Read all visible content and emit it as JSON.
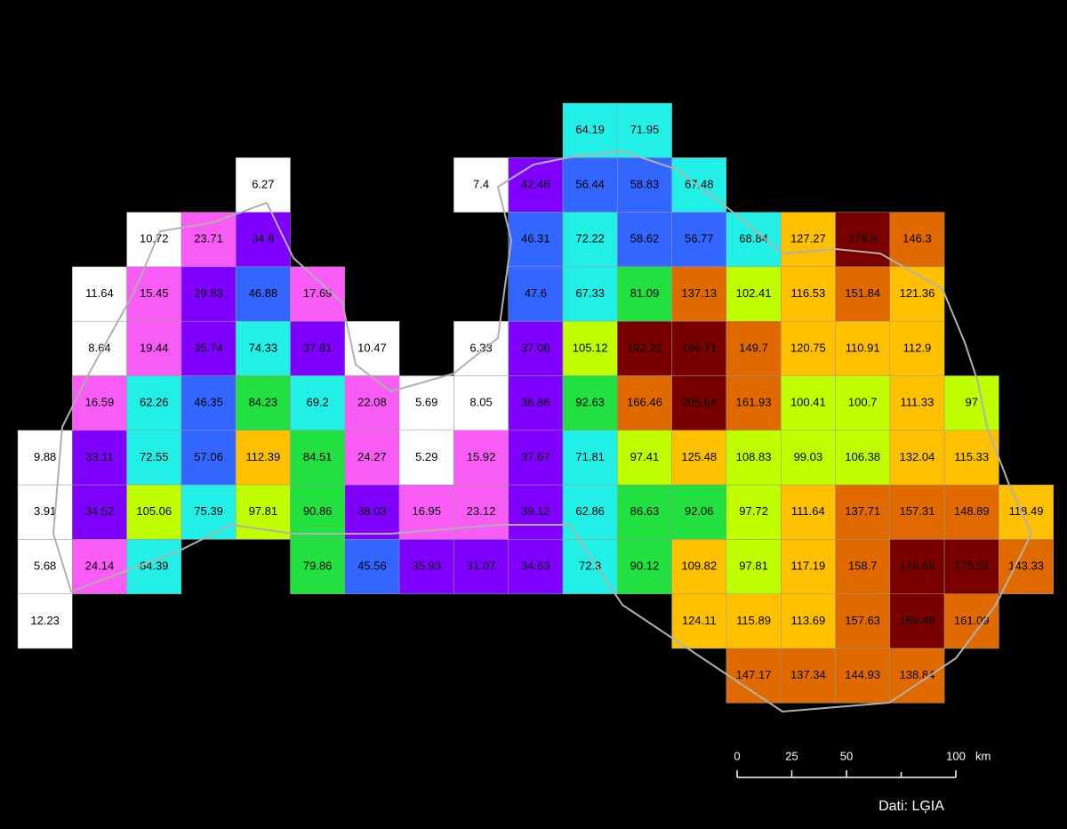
{
  "map": {
    "rows": [
      [
        null,
        null,
        null,
        null,
        null,
        null,
        null,
        null,
        null,
        null,
        {
          "value": 64.19,
          "color": "#22f0e6"
        },
        {
          "value": 71.95,
          "color": "#22f0e6"
        },
        null,
        null,
        null,
        null,
        null,
        null,
        null
      ],
      [
        null,
        null,
        null,
        null,
        {
          "value": 6.27,
          "color": "#ffffff"
        },
        null,
        null,
        null,
        {
          "value": 7.4,
          "color": "#ffffff"
        },
        {
          "value": 42.48,
          "color": "#8000ff"
        },
        {
          "value": 56.44,
          "color": "#3366ff"
        },
        {
          "value": 58.83,
          "color": "#3366ff"
        },
        {
          "value": 67.48,
          "color": "#22f0e6"
        },
        null,
        null,
        null,
        null,
        null,
        null
      ],
      [
        null,
        null,
        {
          "value": 10.72,
          "color": "#ffffff"
        },
        {
          "value": 23.71,
          "color": "#f95cf5"
        },
        {
          "value": 34.8,
          "color": "#8000ff"
        },
        null,
        null,
        null,
        null,
        {
          "value": 46.31,
          "color": "#3366ff"
        },
        {
          "value": 72.22,
          "color": "#22f0e6"
        },
        {
          "value": 58.62,
          "color": "#3366ff"
        },
        {
          "value": 56.77,
          "color": "#3366ff"
        },
        {
          "value": 68.84,
          "color": "#22f0e6"
        },
        {
          "value": 127.27,
          "color": "#ffc000"
        },
        {
          "value": 179.8,
          "color": "#7a0000"
        },
        {
          "value": 146.3,
          "color": "#e06a00"
        },
        null,
        null
      ],
      [
        null,
        {
          "value": 11.64,
          "color": "#ffffff"
        },
        {
          "value": 15.45,
          "color": "#f95cf5"
        },
        {
          "value": 29.83,
          "color": "#8000ff"
        },
        {
          "value": 46.88,
          "color": "#3366ff"
        },
        {
          "value": 17.69,
          "color": "#f95cf5"
        },
        null,
        null,
        null,
        {
          "value": 47.6,
          "color": "#3366ff"
        },
        {
          "value": 67.33,
          "color": "#22f0e6"
        },
        {
          "value": 81.09,
          "color": "#22e040"
        },
        {
          "value": 137.13,
          "color": "#e06a00"
        },
        {
          "value": 102.41,
          "color": "#bfff00"
        },
        {
          "value": 116.53,
          "color": "#ffc000"
        },
        {
          "value": 151.84,
          "color": "#e06a00"
        },
        {
          "value": 121.36,
          "color": "#ffc000"
        },
        null,
        null
      ],
      [
        null,
        {
          "value": 8.64,
          "color": "#ffffff"
        },
        {
          "value": 19.44,
          "color": "#f95cf5"
        },
        {
          "value": 35.74,
          "color": "#8000ff"
        },
        {
          "value": 74.33,
          "color": "#22f0e6"
        },
        {
          "value": 37.81,
          "color": "#8000ff"
        },
        {
          "value": 10.47,
          "color": "#ffffff"
        },
        null,
        {
          "value": 6.33,
          "color": "#ffffff"
        },
        {
          "value": 37.06,
          "color": "#8000ff"
        },
        {
          "value": 105.12,
          "color": "#bfff00"
        },
        {
          "value": 192.22,
          "color": "#7a0000"
        },
        {
          "value": 196.71,
          "color": "#7a0000"
        },
        {
          "value": 149.7,
          "color": "#e06a00"
        },
        {
          "value": 120.75,
          "color": "#ffc000"
        },
        {
          "value": 110.91,
          "color": "#ffc000"
        },
        {
          "value": 112.9,
          "color": "#ffc000"
        },
        null,
        null
      ],
      [
        null,
        {
          "value": 16.59,
          "color": "#f95cf5"
        },
        {
          "value": 62.26,
          "color": "#22f0e6"
        },
        {
          "value": 46.35,
          "color": "#3366ff"
        },
        {
          "value": 84.23,
          "color": "#22e040"
        },
        {
          "value": 69.2,
          "color": "#22f0e6"
        },
        {
          "value": 22.08,
          "color": "#f95cf5"
        },
        {
          "value": 5.69,
          "color": "#ffffff"
        },
        {
          "value": 8.05,
          "color": "#ffffff"
        },
        {
          "value": 36.86,
          "color": "#8000ff"
        },
        {
          "value": 92.63,
          "color": "#22e040"
        },
        {
          "value": 166.46,
          "color": "#e06a00"
        },
        {
          "value": 205.64,
          "color": "#7a0000"
        },
        {
          "value": 161.93,
          "color": "#e06a00"
        },
        {
          "value": 100.41,
          "color": "#bfff00"
        },
        {
          "value": 100.7,
          "color": "#bfff00"
        },
        {
          "value": 111.33,
          "color": "#ffc000"
        },
        {
          "value": 97,
          "color": "#bfff00"
        },
        null
      ],
      [
        {
          "value": 9.88,
          "color": "#ffffff"
        },
        {
          "value": 33.11,
          "color": "#8000ff"
        },
        {
          "value": 72.55,
          "color": "#22f0e6"
        },
        {
          "value": 57.06,
          "color": "#3366ff"
        },
        {
          "value": 112.39,
          "color": "#ffc000"
        },
        {
          "value": 84.51,
          "color": "#22e040"
        },
        {
          "value": 24.27,
          "color": "#f95cf5"
        },
        {
          "value": 5.29,
          "color": "#ffffff"
        },
        {
          "value": 15.92,
          "color": "#f95cf5"
        },
        {
          "value": 37.67,
          "color": "#8000ff"
        },
        {
          "value": 71.81,
          "color": "#22f0e6"
        },
        {
          "value": 97.41,
          "color": "#bfff00"
        },
        {
          "value": 125.48,
          "color": "#ffc000"
        },
        {
          "value": 108.83,
          "color": "#bfff00"
        },
        {
          "value": 99.03,
          "color": "#bfff00"
        },
        {
          "value": 106.38,
          "color": "#bfff00"
        },
        {
          "value": 132.04,
          "color": "#ffc000"
        },
        {
          "value": 115.33,
          "color": "#ffc000"
        },
        null
      ],
      [
        {
          "value": 3.91,
          "color": "#ffffff"
        },
        {
          "value": 34.52,
          "color": "#8000ff"
        },
        {
          "value": 105.06,
          "color": "#bfff00"
        },
        {
          "value": 75.39,
          "color": "#22f0e6"
        },
        {
          "value": 97.81,
          "color": "#bfff00"
        },
        {
          "value": 90.86,
          "color": "#22e040"
        },
        {
          "value": 38.03,
          "color": "#8000ff"
        },
        {
          "value": 16.95,
          "color": "#f95cf5"
        },
        {
          "value": 23.12,
          "color": "#f95cf5"
        },
        {
          "value": 39.12,
          "color": "#8000ff"
        },
        {
          "value": 62.86,
          "color": "#22f0e6"
        },
        {
          "value": 86.63,
          "color": "#22e040"
        },
        {
          "value": 92.06,
          "color": "#22e040"
        },
        {
          "value": 97.72,
          "color": "#bfff00"
        },
        {
          "value": 111.64,
          "color": "#ffc000"
        },
        {
          "value": 137.71,
          "color": "#e06a00"
        },
        {
          "value": 157.31,
          "color": "#e06a00"
        },
        {
          "value": 148.89,
          "color": "#e06a00"
        },
        {
          "value": 118.49,
          "color": "#ffc000"
        }
      ],
      [
        {
          "value": 5.68,
          "color": "#ffffff"
        },
        {
          "value": 24.14,
          "color": "#f95cf5"
        },
        {
          "value": 64.39,
          "color": "#22f0e6"
        },
        null,
        null,
        {
          "value": 79.86,
          "color": "#22e040"
        },
        {
          "value": 45.56,
          "color": "#3366ff"
        },
        {
          "value": 35.93,
          "color": "#8000ff"
        },
        {
          "value": 31.07,
          "color": "#8000ff"
        },
        {
          "value": 34.63,
          "color": "#8000ff"
        },
        {
          "value": 72.3,
          "color": "#22f0e6"
        },
        {
          "value": 90.12,
          "color": "#22e040"
        },
        {
          "value": 109.82,
          "color": "#ffc000"
        },
        {
          "value": 97.81,
          "color": "#bfff00"
        },
        {
          "value": 117.19,
          "color": "#ffc000"
        },
        {
          "value": 158.7,
          "color": "#e06a00"
        },
        {
          "value": 179.69,
          "color": "#7a0000"
        },
        {
          "value": 175.52,
          "color": "#7a0000"
        },
        {
          "value": 143.33,
          "color": "#e06a00"
        }
      ],
      [
        {
          "value": 12.23,
          "color": "#ffffff"
        },
        null,
        null,
        null,
        null,
        null,
        null,
        null,
        null,
        null,
        null,
        null,
        {
          "value": 124.11,
          "color": "#ffc000"
        },
        {
          "value": 115.89,
          "color": "#ffc000"
        },
        {
          "value": 113.69,
          "color": "#ffc000"
        },
        {
          "value": 157.63,
          "color": "#e06a00"
        },
        {
          "value": 169.48,
          "color": "#7a0000"
        },
        {
          "value": 161.09,
          "color": "#e06a00"
        },
        null
      ],
      [
        null,
        null,
        null,
        null,
        null,
        null,
        null,
        null,
        null,
        null,
        null,
        null,
        null,
        {
          "value": 147.17,
          "color": "#e06a00"
        },
        {
          "value": 137.34,
          "color": "#e06a00"
        },
        {
          "value": 144.93,
          "color": "#e06a00"
        },
        {
          "value": 138.84,
          "color": "#e06a00"
        },
        null,
        null
      ]
    ],
    "scale_bar": {
      "ticks": [
        0,
        25,
        50,
        100
      ],
      "unit": "km"
    },
    "source": "Dati: LĢIA"
  }
}
